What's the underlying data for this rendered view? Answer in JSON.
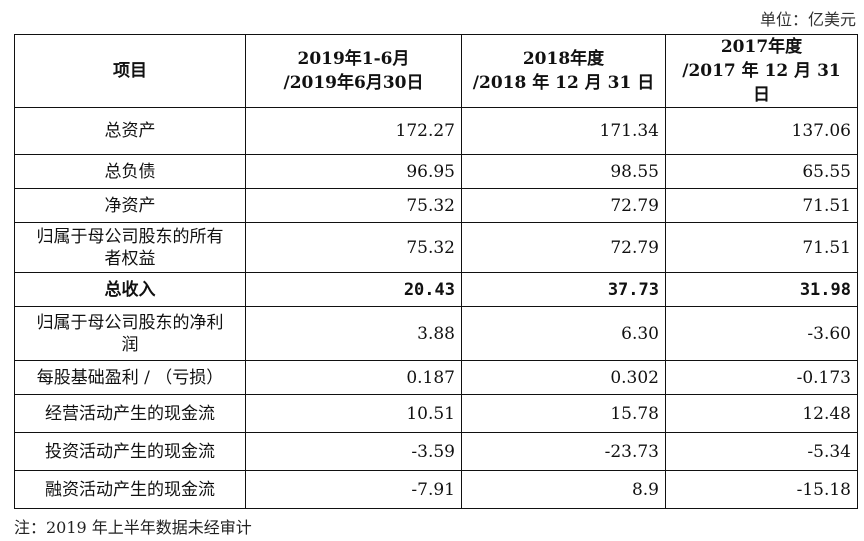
{
  "unit_label": "单位：亿美元",
  "header": {
    "item": "项目",
    "col1_line1": "2019年1-6月",
    "col1_line2": "/2019年6月30日",
    "col2_line1": "2018年度",
    "col2_line2": "/2018 年 12 月 31 日",
    "col3_line1": "2017年度",
    "col3_line2": "/2017 年 12 月 31 日"
  },
  "rows": [
    {
      "label": "总资产",
      "v2019": "172.27",
      "v2018": "171.34",
      "v2017": "137.06"
    },
    {
      "label": "总负债",
      "v2019": "96.95",
      "v2018": "98.55",
      "v2017": "65.55"
    },
    {
      "label": "净资产",
      "v2019": "75.32",
      "v2018": "72.79",
      "v2017": "71.51"
    },
    {
      "label_line1": "归属于母公司股东的所有",
      "label_line2": "者权益",
      "v2019": "75.32",
      "v2018": "72.79",
      "v2017": "71.51"
    },
    {
      "label": "总收入",
      "v2019": "20.43",
      "v2018": "37.73",
      "v2017": "31.98"
    },
    {
      "label_line1": "归属于母公司股东的净利",
      "label_line2": "润",
      "v2019": "3.88",
      "v2018": "6.30",
      "v2017": "-3.60"
    },
    {
      "label": "每股基础盈利 / （亏损）",
      "v2019": "0.187",
      "v2018": "0.302",
      "v2017": "-0.173"
    },
    {
      "label": "经营活动产生的现金流",
      "v2019": "10.51",
      "v2018": "15.78",
      "v2017": "12.48"
    },
    {
      "label": "投资活动产生的现金流",
      "v2019": "-3.59",
      "v2018": "-23.73",
      "v2017": "-5.34"
    },
    {
      "label": "融资活动产生的现金流",
      "v2019": "-7.91",
      "v2018": "8.9",
      "v2017": "-15.18"
    }
  ],
  "note": "注：2019 年上半年数据未经审计"
}
